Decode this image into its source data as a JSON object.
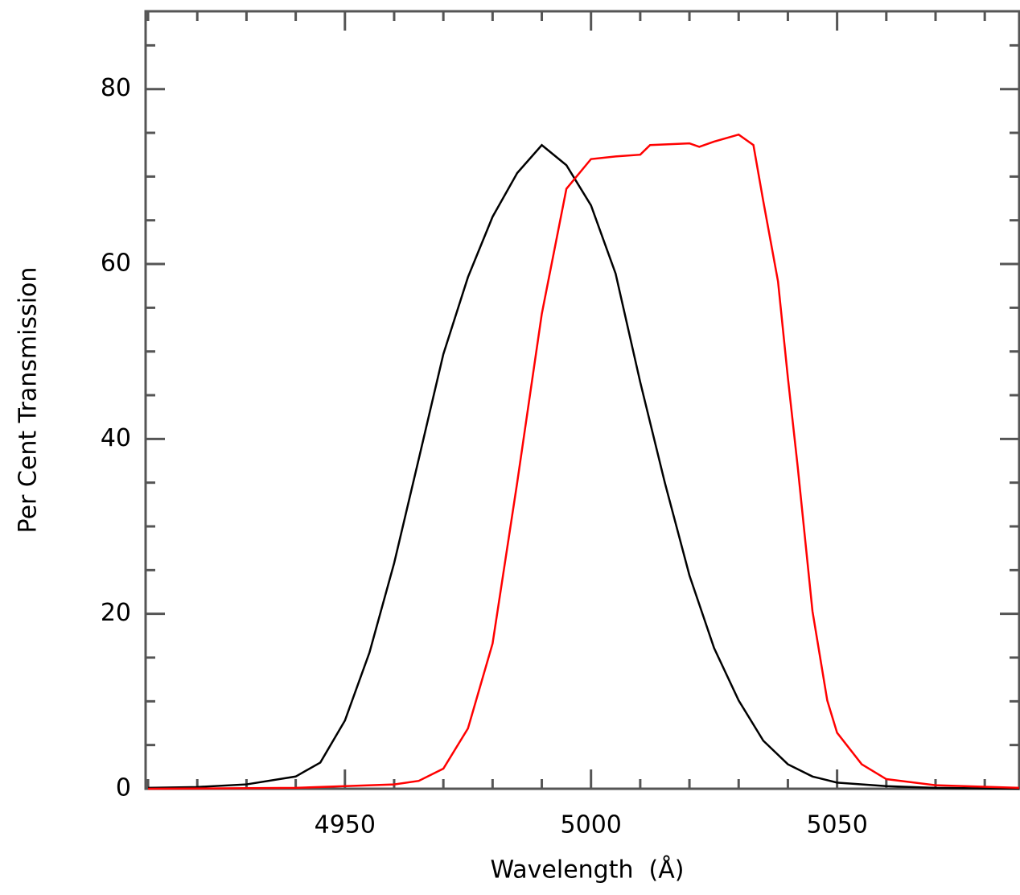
{
  "chart_data": {
    "type": "line",
    "x_label": "Wavelength  (Å)",
    "y_label": "Per Cent Transmission",
    "xlim": [
      4909.5,
      5087
    ],
    "ylim": [
      0,
      88.9
    ],
    "xticks": [
      4950,
      5000,
      5050
    ],
    "yticks": [
      0,
      20,
      40,
      60,
      80
    ],
    "xticks_minor": [
      4910,
      4920,
      4930,
      4940,
      4960,
      4970,
      4980,
      4990,
      5010,
      5020,
      5030,
      5040,
      5060,
      5070,
      5080
    ],
    "yticks_minor": [
      5,
      10,
      15,
      25,
      30,
      35,
      45,
      50,
      55,
      65,
      70,
      75,
      85
    ],
    "series": [
      {
        "color": "#000000",
        "x": [
          4910,
          4920,
          4930,
          4940,
          4945,
          4950,
          4955,
          4960,
          4965,
          4970,
          4975,
          4980,
          4985,
          4990,
          4995,
          5000,
          5005,
          5010,
          5015,
          5020,
          5025,
          5030,
          5035,
          5040,
          5045,
          5050,
          5060,
          5070,
          5087
        ],
        "values": [
          0.1,
          0.2,
          0.5,
          1.4,
          3,
          7.8,
          15.6,
          25.8,
          37.7,
          49.7,
          58.5,
          65.4,
          70.4,
          73.6,
          71.3,
          66.7,
          58.9,
          46.5,
          35,
          24.4,
          16.1,
          10.1,
          5.5,
          2.8,
          1.4,
          0.7,
          0.3,
          0.1,
          0
        ]
      },
      {
        "color": "#ff0000",
        "x": [
          4910,
          4940,
          4950,
          4960,
          4965,
          4970,
          4975,
          4980,
          4985,
          4990,
          4995,
          5000,
          5005,
          5010,
          5012,
          5020,
          5022,
          5025,
          5030,
          5033,
          5035,
          5038,
          5040,
          5042,
          5045,
          5048,
          5050,
          5055,
          5060,
          5070,
          5087
        ],
        "values": [
          0,
          0.1,
          0.3,
          0.5,
          0.9,
          2.3,
          6.9,
          16.6,
          35,
          54.3,
          68.6,
          72,
          72.3,
          72.5,
          73.6,
          73.8,
          73.4,
          74,
          74.8,
          73.6,
          67.2,
          58,
          47,
          36.8,
          20.3,
          10.1,
          6.4,
          2.8,
          1.1,
          0.4,
          0.1
        ]
      }
    ]
  }
}
